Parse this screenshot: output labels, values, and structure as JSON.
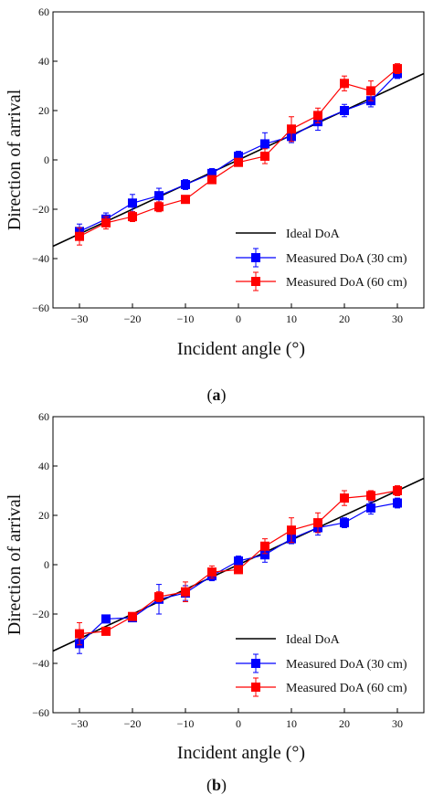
{
  "figure": {
    "panels": [
      {
        "caption_open": "(",
        "caption_letter": "a",
        "caption_close": ")"
      },
      {
        "caption_open": "(",
        "caption_letter": "b",
        "caption_close": ")"
      }
    ]
  },
  "chart_data": [
    {
      "type": "line",
      "title": "",
      "xlabel": "Incident angle (°)",
      "ylabel": "Direction of arrival",
      "xlim": [
        -35,
        35
      ],
      "ylim": [
        -60,
        60
      ],
      "xticks": [
        -30,
        -20,
        -10,
        0,
        10,
        20,
        30
      ],
      "yticks": [
        -60,
        -40,
        -20,
        0,
        20,
        40,
        60
      ],
      "grid": false,
      "legend_position": "bottom-right",
      "ideal": {
        "name": "Ideal DoA",
        "color": "#000000",
        "x": [
          -35,
          35
        ]
      },
      "series": [
        {
          "name": "Measured DoA (30 cm)",
          "color": "#0000ff",
          "x": [
            -30,
            -25,
            -20,
            -15,
            -10,
            -5,
            0,
            5,
            10,
            15,
            20,
            25,
            30
          ],
          "y": [
            -29,
            -24,
            -17.5,
            -14.5,
            -10,
            -5.5,
            1.5,
            6.5,
            9.5,
            15.5,
            20,
            24,
            35
          ],
          "err": [
            3,
            2.5,
            3.5,
            3,
            2,
            2,
            2,
            4.5,
            2.5,
            3.5,
            2.5,
            2.5,
            2
          ]
        },
        {
          "name": "Measured DoA (60 cm)",
          "color": "#ff0000",
          "x": [
            -30,
            -25,
            -20,
            -15,
            -10,
            -5,
            0,
            5,
            10,
            15,
            20,
            25,
            30
          ],
          "y": [
            -31,
            -25.5,
            -23,
            -19,
            -16,
            -8,
            -1,
            1.5,
            12.5,
            18,
            31,
            28,
            37
          ],
          "err": [
            3.5,
            2.5,
            2,
            2,
            1.5,
            1.5,
            1.5,
            3,
            5,
            3,
            3,
            4,
            2
          ]
        }
      ]
    },
    {
      "type": "line",
      "title": "",
      "xlabel": "Incident angle (°)",
      "ylabel": "Direction of arrival",
      "xlim": [
        -35,
        35
      ],
      "ylim": [
        -60,
        60
      ],
      "xticks": [
        -30,
        -20,
        -10,
        0,
        10,
        20,
        30
      ],
      "yticks": [
        -60,
        -40,
        -20,
        0,
        20,
        40,
        60
      ],
      "grid": false,
      "legend_position": "bottom-right",
      "ideal": {
        "name": "Ideal DoA",
        "color": "#000000",
        "x": [
          -35,
          35
        ]
      },
      "series": [
        {
          "name": "Measured DoA (30 cm)",
          "color": "#0000ff",
          "x": [
            -30,
            -25,
            -20,
            -15,
            -10,
            -5,
            0,
            5,
            10,
            15,
            20,
            25,
            30
          ],
          "y": [
            -32,
            -22,
            -21.5,
            -14,
            -11.5,
            -4.5,
            1.5,
            4,
            10.5,
            15,
            17,
            23,
            25
          ],
          "err": [
            4,
            1.5,
            1.5,
            6,
            3,
            2,
            2,
            3,
            2,
            3,
            2,
            2.5,
            2
          ]
        },
        {
          "name": "Measured DoA (60 cm)",
          "color": "#ff0000",
          "x": [
            -30,
            -25,
            -20,
            -15,
            -10,
            -5,
            0,
            5,
            10,
            15,
            20,
            25,
            30
          ],
          "y": [
            -28,
            -27,
            -21,
            -13,
            -11,
            -3,
            -2,
            7.5,
            14,
            17,
            27,
            28,
            30
          ],
          "err": [
            4.5,
            1.5,
            1.5,
            2,
            4,
            2.5,
            1.5,
            3,
            5,
            4,
            3,
            2,
            2
          ]
        }
      ]
    }
  ]
}
